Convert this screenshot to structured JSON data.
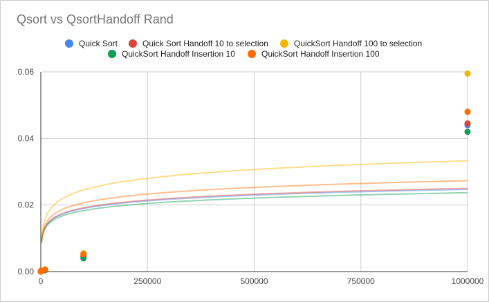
{
  "chart_data": {
    "type": "scatter",
    "title": "Qsort vs QsortHandoff Rand",
    "xlabel": "",
    "ylabel": "",
    "xlim": [
      0,
      1000000
    ],
    "ylim": [
      0,
      0.06
    ],
    "x_ticks": [
      0,
      250000,
      500000,
      750000,
      1000000
    ],
    "y_ticks": [
      0.0,
      0.02,
      0.04,
      0.06
    ],
    "x_tick_labels": [
      "0",
      "250000",
      "500000",
      "750000",
      "1000000"
    ],
    "y_tick_labels": [
      "0.00",
      "0.02",
      "0.04",
      "0.06"
    ],
    "grid": true,
    "legend_position": "top",
    "trendline": "logarithmic",
    "series": [
      {
        "name": "Quick Sort",
        "color": "#4285f4",
        "x": [
          10,
          100,
          1000,
          10000,
          100000,
          1000000
        ],
        "y": [
          0.0,
          0.0001,
          0.0002,
          0.0004,
          0.0045,
          0.044
        ],
        "trend_y_at_max": 0.0247
      },
      {
        "name": "Quick Sort Handoff 10 to selection",
        "color": "#db4437",
        "x": [
          10,
          100,
          1000,
          10000,
          100000,
          1000000
        ],
        "y": [
          0.0,
          0.0001,
          0.0002,
          0.0005,
          0.0047,
          0.0445
        ],
        "trend_y_at_max": 0.025
      },
      {
        "name": "QuickSort Handoff 100 to selection",
        "color": "#f4b400",
        "x": [
          10,
          100,
          1000,
          10000,
          100000,
          1000000
        ],
        "y": [
          0.0,
          0.0001,
          0.0003,
          0.0007,
          0.0055,
          0.0595
        ],
        "trend_y_at_max": 0.0333
      },
      {
        "name": "QuickSort Handoff Insertion 10",
        "color": "#0f9d58",
        "x": [
          10,
          100,
          1000,
          10000,
          100000,
          1000000
        ],
        "y": [
          0.0,
          0.0001,
          0.0002,
          0.0004,
          0.004,
          0.042
        ],
        "trend_y_at_max": 0.0237
      },
      {
        "name": "QuickSort Handoff Insertion 100",
        "color": "#ff6d00",
        "x": [
          10,
          100,
          1000,
          10000,
          100000,
          1000000
        ],
        "y": [
          0.0,
          0.0001,
          0.0003,
          0.0006,
          0.0052,
          0.048
        ],
        "trend_y_at_max": 0.0273
      }
    ]
  }
}
